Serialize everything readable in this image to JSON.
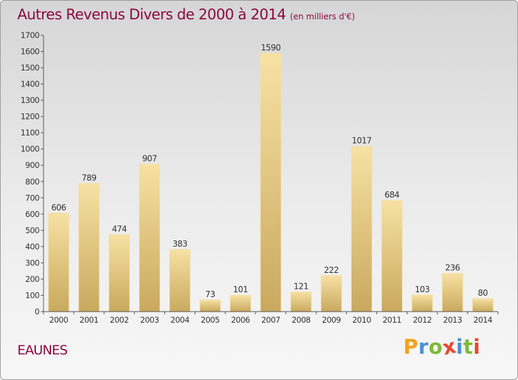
{
  "header": {
    "title": "Autres Revenus Divers de 2000 à 2014",
    "unit_note": "(en milliers d'€)"
  },
  "location": "EAUNES",
  "logo": {
    "text": "Proxiti",
    "letter_colors": [
      "#f3a21a",
      "#4b8fd4",
      "#7dba3a",
      "#e8472f",
      "#4b8fd4",
      "#7dba3a",
      "#e8472f"
    ]
  },
  "chart_data": {
    "type": "bar",
    "title": "Autres Revenus Divers de 2000 à 2014",
    "unit": "(en milliers d'€)",
    "categories": [
      "2000",
      "2001",
      "2002",
      "2003",
      "2004",
      "2005",
      "2006",
      "2007",
      "2008",
      "2009",
      "2010",
      "2011",
      "2012",
      "2013",
      "2014"
    ],
    "values": [
      606,
      789,
      474,
      907,
      383,
      73,
      101,
      1590,
      121,
      222,
      1017,
      684,
      103,
      236,
      80
    ],
    "ylim": [
      0,
      1700
    ],
    "yticks": [
      0,
      100,
      200,
      300,
      400,
      500,
      600,
      700,
      800,
      900,
      1000,
      1100,
      1200,
      1300,
      1400,
      1500,
      1600,
      1700
    ],
    "grid": false,
    "bar_color": "#e6c77e"
  }
}
